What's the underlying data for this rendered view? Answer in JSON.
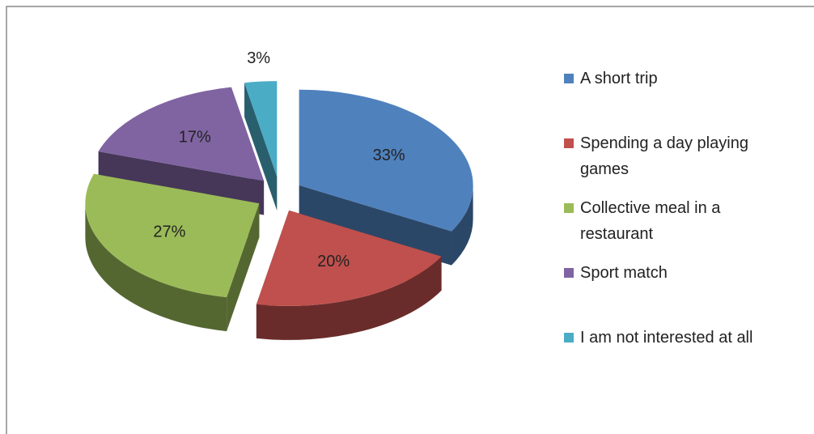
{
  "chart_data": {
    "type": "pie",
    "categories": [
      "A short trip",
      "Spending a day playing games",
      "Collective meal in a restaurant",
      "Sport match",
      "I am not interested at all"
    ],
    "values": [
      33,
      20,
      27,
      17,
      3
    ],
    "value_labels": [
      "33%",
      "20%",
      "27%",
      "17%",
      "3%"
    ],
    "colors": [
      "#4f81bd",
      "#c0504d",
      "#9bbb59",
      "#8064a2",
      "#4bacc6"
    ],
    "legend": "right"
  }
}
